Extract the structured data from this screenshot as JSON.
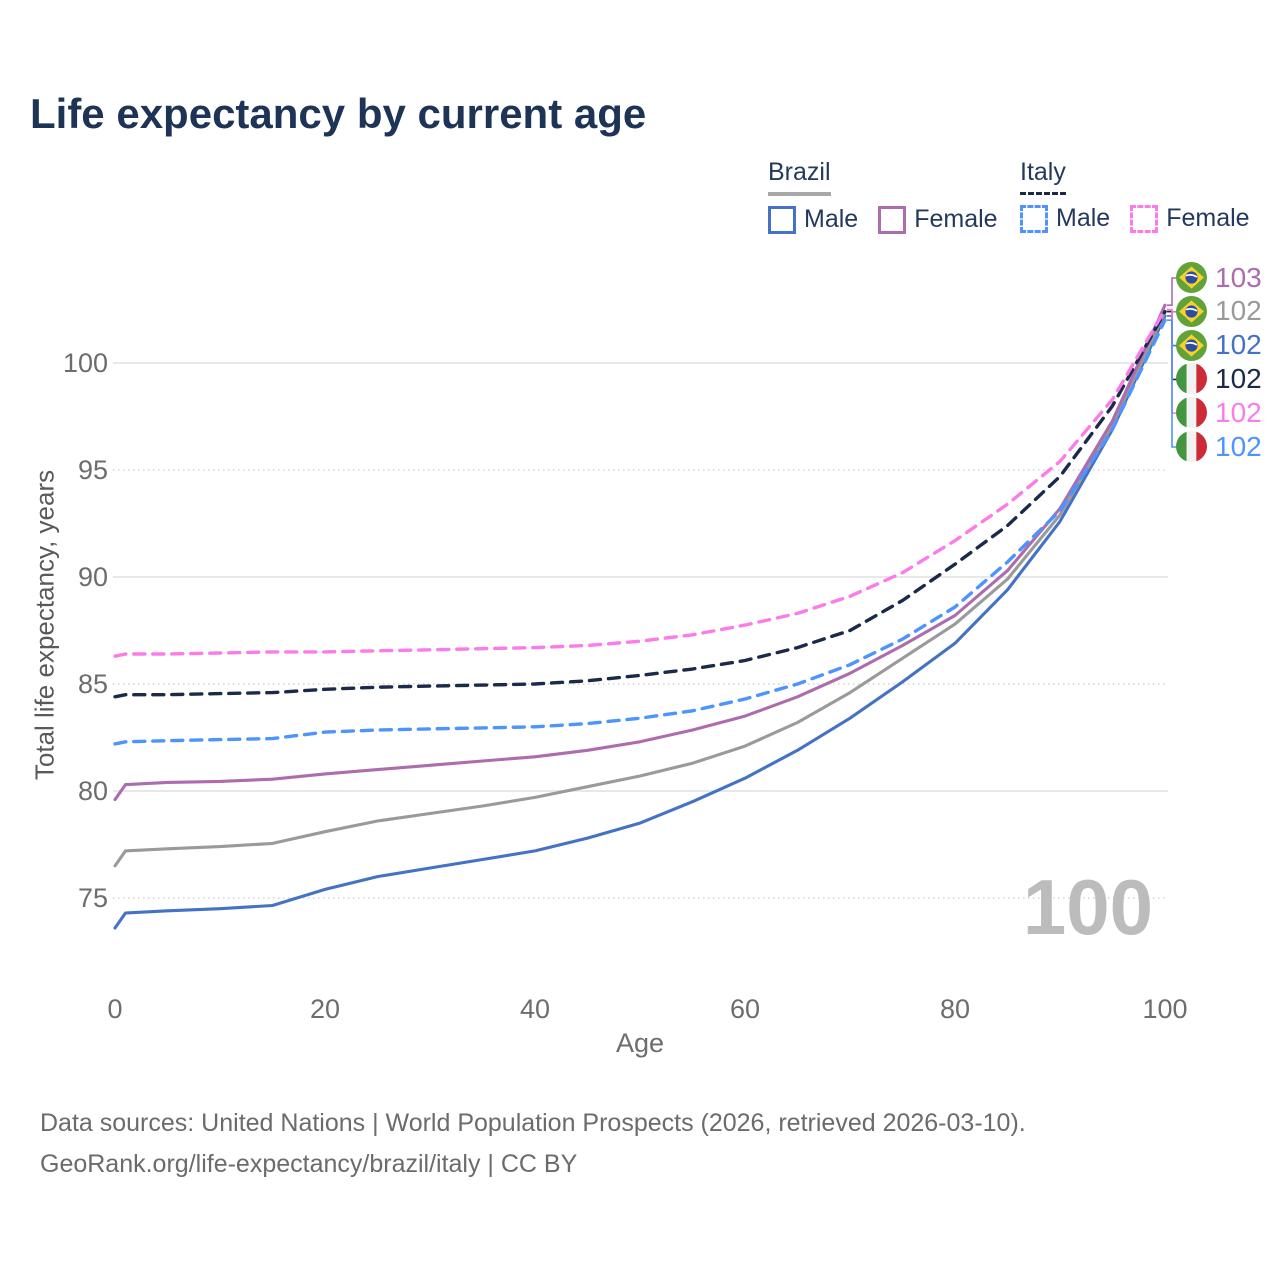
{
  "title": "Life expectancy by current age",
  "legend": {
    "groups": [
      {
        "id": "brazil",
        "label": "Brazil",
        "line_style": "solid",
        "line_color": "#a8a8a8",
        "items": [
          {
            "id": "brazil-male",
            "label": "Male",
            "color": "#4472c4",
            "style": "solid"
          },
          {
            "id": "brazil-female",
            "label": "Female",
            "color": "#ad6cad",
            "style": "solid"
          }
        ]
      },
      {
        "id": "italy",
        "label": "Italy",
        "line_style": "dashed",
        "line_color": "#1b2a4a",
        "items": [
          {
            "id": "italy-male",
            "label": "Male",
            "color": "#4d94ff",
            "style": "dashed"
          },
          {
            "id": "italy-female",
            "label": "Female",
            "color": "#fb7ce8",
            "style": "dashed"
          }
        ]
      }
    ]
  },
  "watermark": "100",
  "colors": {
    "title": "#1e3456",
    "tick_label": "#6d6d6d",
    "grid_major": "#e8e8e8",
    "grid_minor": "#d4d4d4",
    "footer": "#6b6b6b",
    "watermark": "#bcbcbc"
  },
  "chart_data": {
    "type": "line",
    "title": "Life expectancy by current age",
    "xlabel": "Age",
    "ylabel": "Total life expectancy, years",
    "x_ticks": [
      0,
      20,
      40,
      60,
      80,
      100
    ],
    "y_ticks": [
      75,
      80,
      85,
      90,
      95,
      100
    ],
    "xlim": [
      0,
      100
    ],
    "ylim": [
      73,
      103.5
    ],
    "grid": "horizontal",
    "legend_position": "top-right",
    "ages": [
      0,
      1,
      5,
      10,
      15,
      20,
      25,
      30,
      35,
      40,
      45,
      50,
      55,
      60,
      65,
      70,
      75,
      80,
      85,
      90,
      95,
      100
    ],
    "series": [
      {
        "id": "brazil_male",
        "name": "Brazil Male",
        "country": "Brazil",
        "sex": "Male",
        "color": "#4472c4",
        "dash": false,
        "values": [
          73.6,
          74.3,
          74.4,
          74.5,
          74.65,
          75.4,
          76.0,
          76.4,
          76.8,
          77.2,
          77.8,
          78.5,
          79.5,
          80.6,
          81.9,
          83.4,
          85.1,
          86.9,
          89.4,
          92.6,
          96.9,
          102.2
        ]
      },
      {
        "id": "brazil_total",
        "name": "Brazil (both sexes)",
        "country": "Brazil",
        "sex": "Total",
        "color": "#9a9a9a",
        "dash": false,
        "values": [
          76.5,
          77.2,
          77.3,
          77.4,
          77.55,
          78.1,
          78.6,
          78.95,
          79.3,
          79.7,
          80.2,
          80.7,
          81.3,
          82.1,
          83.2,
          84.6,
          86.2,
          87.8,
          89.9,
          92.9,
          97.1,
          102.4
        ]
      },
      {
        "id": "brazil_female",
        "name": "Brazil Female",
        "country": "Brazil",
        "sex": "Female",
        "color": "#ad6cad",
        "dash": false,
        "values": [
          79.6,
          80.3,
          80.4,
          80.45,
          80.55,
          80.8,
          81.0,
          81.2,
          81.4,
          81.6,
          81.9,
          82.3,
          82.85,
          83.5,
          84.4,
          85.5,
          86.8,
          88.2,
          90.3,
          93.2,
          97.3,
          102.7
        ]
      },
      {
        "id": "italy_male",
        "name": "Italy Male",
        "country": "Italy",
        "sex": "Male",
        "color": "#4d94ff",
        "dash": true,
        "values": [
          82.2,
          82.3,
          82.35,
          82.4,
          82.45,
          82.75,
          82.85,
          82.9,
          82.95,
          83.0,
          83.15,
          83.4,
          83.75,
          84.3,
          85.0,
          85.9,
          87.1,
          88.6,
          90.7,
          93.1,
          96.9,
          102.0
        ]
      },
      {
        "id": "italy_total",
        "name": "Italy (both sexes)",
        "country": "Italy",
        "sex": "Total",
        "color": "#1b2a4a",
        "dash": true,
        "values": [
          84.4,
          84.5,
          84.5,
          84.55,
          84.6,
          84.75,
          84.85,
          84.9,
          84.95,
          85.0,
          85.15,
          85.4,
          85.7,
          86.1,
          86.7,
          87.5,
          88.9,
          90.6,
          92.4,
          94.7,
          98.0,
          102.4
        ]
      },
      {
        "id": "italy_female",
        "name": "Italy Female",
        "country": "Italy",
        "sex": "Female",
        "color": "#fb7ce8",
        "dash": true,
        "values": [
          86.3,
          86.4,
          86.4,
          86.45,
          86.5,
          86.5,
          86.55,
          86.6,
          86.65,
          86.7,
          86.8,
          87.0,
          87.3,
          87.75,
          88.3,
          89.1,
          90.2,
          91.7,
          93.4,
          95.4,
          98.3,
          102.5
        ]
      }
    ],
    "end_labels": [
      {
        "flag": "brazil",
        "value": "103",
        "color": "#ad6cad",
        "series": "brazil_female"
      },
      {
        "flag": "brazil",
        "value": "102",
        "color": "#9a9a9a",
        "series": "brazil_total"
      },
      {
        "flag": "brazil",
        "value": "102",
        "color": "#4472c4",
        "series": "brazil_male"
      },
      {
        "flag": "italy",
        "value": "102",
        "color": "#1b2a4a",
        "series": "italy_total"
      },
      {
        "flag": "italy",
        "value": "102",
        "color": "#fb7ce8",
        "series": "italy_female"
      },
      {
        "flag": "italy",
        "value": "102",
        "color": "#4d94ff",
        "series": "italy_male"
      }
    ]
  },
  "footer": {
    "line1": "Data sources: United Nations | World Population Prospects (2026, retrieved 2026-03-10).",
    "line2": "GeoRank.org/life-expectancy/brazil/italy | CC BY"
  }
}
